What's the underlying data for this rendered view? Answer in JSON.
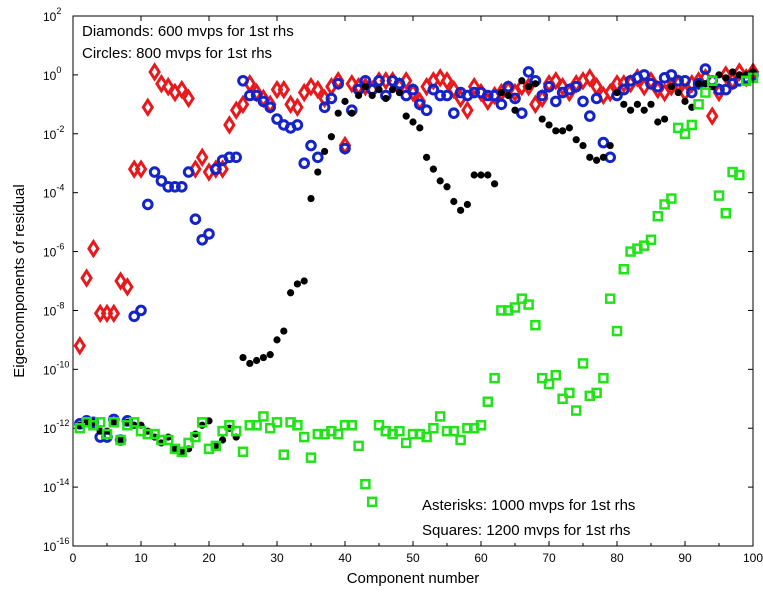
{
  "chart_data": {
    "type": "scatter",
    "xlabel": "Component number",
    "ylabel": "Eigencomponents of residual",
    "xlim": [
      0,
      100
    ],
    "ylim": [
      1e-16,
      100
    ],
    "yscale": "log",
    "grid": false,
    "x_ticks": [
      "0",
      "10",
      "20",
      "30",
      "40",
      "50",
      "60",
      "70",
      "80",
      "90",
      "100"
    ],
    "y_ticks": [
      {
        "base": "10",
        "exp": "2"
      },
      {
        "base": "10",
        "exp": "0"
      },
      {
        "base": "10",
        "exp": "-2"
      },
      {
        "base": "10",
        "exp": "-4"
      },
      {
        "base": "10",
        "exp": "-6"
      },
      {
        "base": "10",
        "exp": "-8"
      },
      {
        "base": "10",
        "exp": "-10"
      },
      {
        "base": "10",
        "exp": "-12"
      },
      {
        "base": "10",
        "exp": "-14"
      },
      {
        "base": "10",
        "exp": "-16"
      }
    ],
    "annotations": {
      "top_left": [
        "Diamonds: 600 mvps for 1st rhs",
        "Circles: 800 mvps for 1st rhs"
      ],
      "bottom_right": [
        "Asterisks: 1000 mvps for 1st rhs",
        "Squares: 1200 mvps for 1st rhs"
      ]
    },
    "series": [
      {
        "marker": "diamond",
        "color": "#e8191c",
        "x": [
          1,
          2,
          3,
          4,
          5,
          6,
          7,
          8,
          9,
          10,
          11,
          12,
          13,
          14,
          15,
          16,
          17,
          18,
          19,
          20,
          21,
          22,
          23,
          24,
          25,
          26,
          27,
          28,
          29,
          30,
          31,
          32,
          33,
          34,
          35,
          36,
          37,
          38,
          39,
          40,
          41,
          42,
          43,
          44,
          45,
          46,
          47,
          48,
          49,
          50,
          51,
          52,
          53,
          54,
          55,
          56,
          57,
          58,
          59,
          60,
          61,
          62,
          63,
          64,
          65,
          66,
          67,
          68,
          69,
          70,
          71,
          72,
          73,
          74,
          75,
          76,
          77,
          78,
          79,
          80,
          81,
          82,
          83,
          84,
          85,
          86,
          87,
          88,
          89,
          90,
          91,
          92,
          93,
          94,
          95,
          96,
          97,
          98,
          99,
          100
        ],
        "y_exp": [
          -9.2,
          -6.9,
          -5.9,
          -8.1,
          -8.1,
          -8.1,
          -7.0,
          -7.2,
          -3.2,
          -3.2,
          -1.1,
          0.1,
          -0.3,
          -0.4,
          -0.6,
          -0.5,
          -0.8,
          -3.2,
          -2.8,
          -3.3,
          -3.2,
          -3.2,
          -1.7,
          -1.2,
          -1.0,
          -0.3,
          -0.6,
          -0.8,
          -1.0,
          -0.5,
          -0.5,
          -1.0,
          -1.1,
          -0.6,
          -0.4,
          -0.5,
          -0.8,
          -0.4,
          -0.2,
          -2.4,
          -0.3,
          -0.4,
          -0.4,
          -0.5,
          -0.2,
          -0.2,
          -0.2,
          -0.4,
          -0.2,
          -0.6,
          -0.9,
          -0.4,
          -0.2,
          -0.1,
          -0.2,
          -0.5,
          -0.8,
          -1.2,
          -0.4,
          -0.6,
          -0.9,
          -0.7,
          -0.6,
          -0.5,
          -0.6,
          -0.4,
          -0.4,
          -1.0,
          -0.8,
          -0.3,
          -0.2,
          -0.4,
          -0.6,
          -0.3,
          -0.2,
          -0.1,
          -0.4,
          -0.7,
          -0.6,
          -0.3,
          -0.3,
          -0.3,
          -0.1,
          -0.4,
          -0.2,
          -0.5,
          -0.6,
          -0.4,
          -0.3,
          -0.6,
          -0.3,
          -0.2,
          -0.1,
          -1.4,
          -0.6,
          0.0,
          -0.2,
          0.1,
          -0.1,
          0.1
        ]
      },
      {
        "marker": "circle",
        "color": "#1424c8",
        "x": [
          1,
          2,
          3,
          4,
          5,
          6,
          7,
          8,
          9,
          10,
          11,
          12,
          13,
          14,
          15,
          16,
          17,
          18,
          19,
          20,
          21,
          22,
          23,
          24,
          25,
          26,
          27,
          28,
          29,
          30,
          31,
          32,
          33,
          34,
          35,
          36,
          37,
          38,
          39,
          40,
          41,
          42,
          43,
          44,
          45,
          46,
          47,
          48,
          49,
          50,
          51,
          52,
          53,
          54,
          55,
          56,
          57,
          58,
          59,
          60,
          61,
          62,
          63,
          64,
          65,
          66,
          67,
          68,
          69,
          70,
          71,
          72,
          73,
          74,
          75,
          76,
          77,
          78,
          79,
          80,
          81,
          82,
          83,
          84,
          85,
          86,
          87,
          88,
          89,
          90,
          91,
          92,
          93,
          94,
          95,
          96,
          97,
          98,
          99,
          100
        ],
        "y_exp": [
          -11.85,
          -11.75,
          -11.8,
          -12.3,
          -12.3,
          -11.7,
          -12.4,
          -11.75,
          -8.2,
          -8.0,
          -4.4,
          -3.3,
          -3.6,
          -3.8,
          -3.8,
          -3.8,
          -3.3,
          -4.9,
          -5.6,
          -5.4,
          -3.2,
          -2.9,
          -2.8,
          -2.8,
          -0.2,
          -0.7,
          -0.7,
          -0.9,
          -1.1,
          -1.5,
          -1.7,
          -1.8,
          -1.7,
          -3.0,
          -2.4,
          -2.8,
          -1.1,
          -0.8,
          -0.3,
          -2.5,
          -1.2,
          -0.5,
          -0.2,
          -0.5,
          -0.2,
          -0.7,
          -0.2,
          -0.3,
          -0.7,
          -0.5,
          -1.0,
          -1.2,
          -0.5,
          -0.7,
          -0.7,
          -1.3,
          -0.6,
          -0.7,
          -0.6,
          -0.6,
          -0.7,
          -0.7,
          -1.0,
          -0.4,
          -0.8,
          -1.3,
          0.1,
          -0.2,
          -0.7,
          -0.4,
          -0.9,
          -0.6,
          -0.5,
          -0.4,
          -0.9,
          -1.4,
          -0.8,
          -2.3,
          -2.8,
          -0.7,
          -0.5,
          -0.2,
          -0.1,
          0.0,
          -0.3,
          -0.4,
          -0.1,
          0.0,
          -0.2,
          -0.2,
          -0.6,
          -0.3,
          0.2,
          -0.2,
          -0.5,
          -0.5,
          -0.3,
          -0.2,
          -0.1,
          0.0
        ]
      },
      {
        "marker": "asterisk",
        "color": "#000000",
        "x": [
          1,
          2,
          3,
          4,
          5,
          6,
          7,
          8,
          9,
          10,
          11,
          12,
          13,
          14,
          15,
          16,
          17,
          18,
          19,
          20,
          21,
          22,
          23,
          24,
          25,
          26,
          27,
          28,
          29,
          30,
          31,
          32,
          33,
          34,
          35,
          36,
          37,
          38,
          39,
          40,
          41,
          42,
          43,
          44,
          45,
          46,
          47,
          48,
          49,
          50,
          51,
          52,
          53,
          54,
          55,
          56,
          57,
          58,
          59,
          60,
          61,
          62,
          63,
          64,
          65,
          66,
          67,
          68,
          69,
          70,
          71,
          72,
          73,
          74,
          75,
          76,
          77,
          78,
          79,
          80,
          81,
          82,
          83,
          84,
          85,
          86,
          87,
          88,
          89,
          90,
          91,
          92,
          93,
          94,
          95,
          96,
          97,
          98,
          99,
          100
        ],
        "y_exp": [
          -11.9,
          -11.8,
          -11.8,
          -12.1,
          -12.1,
          -11.8,
          -12.4,
          -11.8,
          -11.9,
          -11.9,
          -12.1,
          -12.3,
          -12.5,
          -12.3,
          -12.7,
          -12.8,
          -12.7,
          -12.2,
          -11.9,
          -11.75,
          -12.6,
          -12.4,
          -12.0,
          -12.3,
          -9.6,
          -9.8,
          -9.7,
          -9.6,
          -9.5,
          -9.0,
          -8.7,
          -7.4,
          -7.1,
          -7.0,
          -4.2,
          -3.3,
          -2.6,
          -2.1,
          -1.3,
          -0.9,
          -1.3,
          -0.7,
          -0.4,
          -0.7,
          -0.5,
          -0.8,
          -0.5,
          -0.6,
          -1.4,
          -1.6,
          -1.8,
          -2.8,
          -3.2,
          -3.6,
          -3.8,
          -4.3,
          -4.6,
          -4.4,
          -3.4,
          -3.4,
          -3.4,
          -3.7,
          -0.6,
          -0.7,
          -1.2,
          -0.2,
          -0.4,
          -0.3,
          -1.5,
          -1.7,
          -1.9,
          -1.9,
          -1.8,
          -2.2,
          -2.4,
          -2.8,
          -2.9,
          -2.8,
          -2.4,
          -0.6,
          -1.0,
          -1.2,
          -1.0,
          -1.2,
          -1.0,
          -1.6,
          -1.5,
          -0.4,
          -0.6,
          -0.9,
          -1.1,
          -0.3,
          -0.3,
          -0.4,
          0.0,
          -0.1,
          0.1,
          0.0,
          0.0,
          0.1
        ]
      },
      {
        "marker": "square",
        "color": "#22e31a",
        "x": [
          1,
          2,
          3,
          4,
          5,
          6,
          7,
          8,
          9,
          10,
          11,
          12,
          13,
          14,
          15,
          16,
          17,
          18,
          19,
          20,
          21,
          22,
          23,
          24,
          25,
          26,
          27,
          28,
          29,
          30,
          31,
          32,
          33,
          34,
          35,
          36,
          37,
          38,
          39,
          40,
          41,
          42,
          43,
          44,
          45,
          46,
          47,
          48,
          49,
          50,
          51,
          52,
          53,
          54,
          55,
          56,
          57,
          58,
          59,
          60,
          61,
          62,
          63,
          64,
          65,
          66,
          67,
          68,
          69,
          70,
          71,
          72,
          73,
          74,
          75,
          76,
          77,
          78,
          79,
          80,
          81,
          82,
          83,
          84,
          85,
          86,
          87,
          88,
          89,
          90,
          91,
          92,
          93,
          94,
          95,
          96,
          97,
          98,
          99,
          100
        ],
        "y_exp": [
          -12.0,
          -11.8,
          -11.9,
          -11.8,
          -12.2,
          -11.8,
          -12.4,
          -11.9,
          -11.8,
          -12.1,
          -12.2,
          -12.2,
          -12.4,
          -12.4,
          -12.7,
          -12.8,
          -12.5,
          -12.3,
          -11.8,
          -12.7,
          -12.6,
          -12.1,
          -11.9,
          -12.1,
          -12.8,
          -11.9,
          -11.9,
          -11.6,
          -12.0,
          -11.8,
          -12.9,
          -11.8,
          -11.9,
          -12.3,
          -13.0,
          -12.2,
          -12.2,
          -12.1,
          -12.2,
          -11.9,
          -11.9,
          -12.6,
          -13.9,
          -14.5,
          -11.9,
          -12.1,
          -12.2,
          -12.1,
          -12.5,
          -12.2,
          -12.2,
          -12.3,
          -12.0,
          -11.6,
          -12.1,
          -12.1,
          -12.4,
          -12.0,
          -12.0,
          -11.9,
          -11.1,
          -10.3,
          -8.0,
          -8.0,
          -7.9,
          -7.6,
          -7.8,
          -8.5,
          -10.3,
          -10.5,
          -10.2,
          -11.0,
          -10.8,
          -11.4,
          -9.8,
          -10.9,
          -10.8,
          -10.3,
          -7.6,
          -8.7,
          -6.6,
          -6.0,
          -5.9,
          -5.8,
          -5.6,
          -4.8,
          -4.4,
          -4.2,
          -1.8,
          -2.0,
          -1.7,
          -1.0,
          -0.6,
          -0.2,
          -4.1,
          -4.7,
          -3.3,
          -3.4,
          -0.2,
          -0.1
        ]
      }
    ]
  }
}
